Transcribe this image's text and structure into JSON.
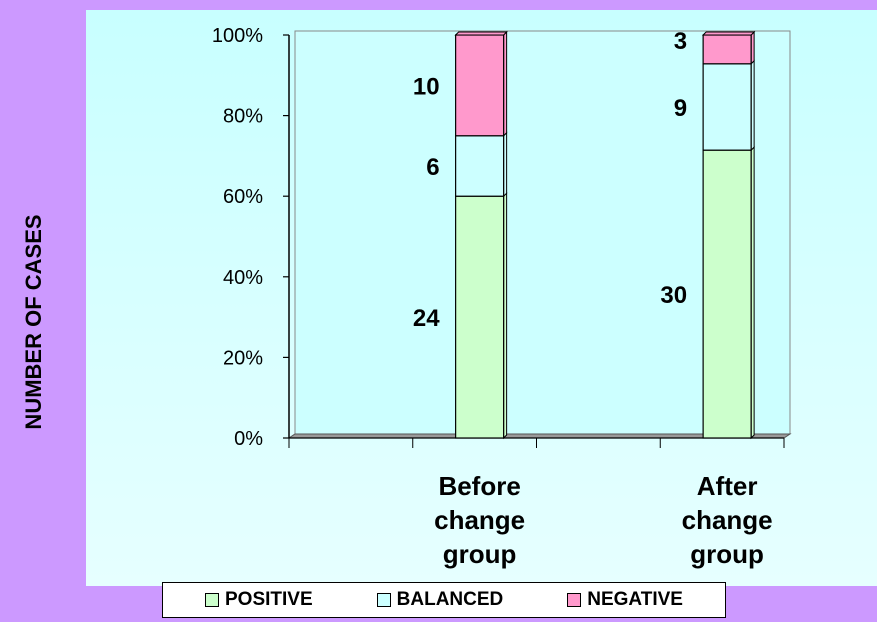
{
  "chart_data": {
    "type": "bar",
    "stacked": true,
    "percent_stacked": true,
    "ylabel": "NUMBER OF CASES",
    "xlabel": "",
    "ylim": [
      0,
      100
    ],
    "y_ticks": [
      "0%",
      "20%",
      "40%",
      "60%",
      "80%",
      "100%"
    ],
    "categories": [
      "Before change group",
      "After change group"
    ],
    "category_lines": [
      [
        "Before",
        "change",
        "group"
      ],
      [
        "After",
        "change",
        "group"
      ]
    ],
    "series": [
      {
        "name": "POSITIVE",
        "values": [
          24,
          30
        ],
        "color": "#ccffcc"
      },
      {
        "name": "BALANCED",
        "values": [
          6,
          9
        ],
        "color": "#ccffff"
      },
      {
        "name": "NEGATIVE",
        "values": [
          10,
          3
        ],
        "color": "#ff99cc"
      }
    ],
    "grid": false,
    "legend_position": "bottom"
  },
  "colors": {
    "frame": "#cc99ff",
    "plot_background": "#ccffff"
  }
}
